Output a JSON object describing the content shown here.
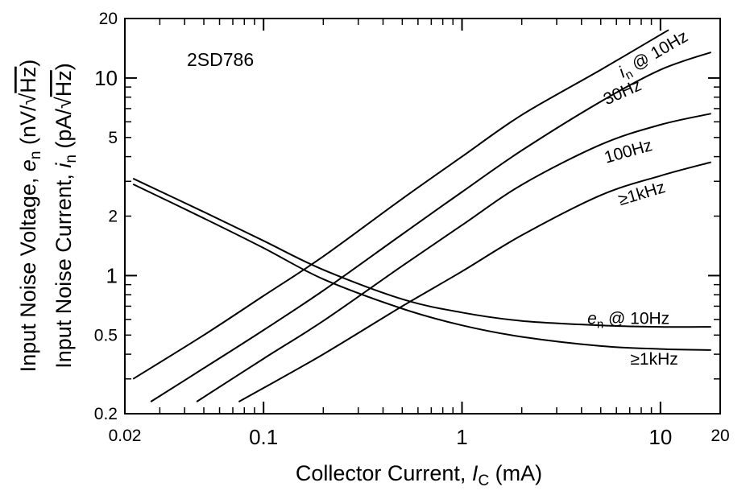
{
  "chart_data": {
    "type": "line",
    "annotation": "2SD786",
    "xlabel": {
      "prefix": "Collector Current, ",
      "symbol": "I",
      "sub": "C",
      "suffix": " (mA)"
    },
    "ylabel": {
      "line1": {
        "prefix": "Input Noise Voltage, ",
        "symbol": "e",
        "sub": "n",
        "unit_open": " (nV/",
        "radical": "√",
        "radicand": "Hz",
        "unit_close": ")"
      },
      "line2": {
        "prefix": "Input Noise Current, ",
        "symbol": "i",
        "sub": "n",
        "unit_open": " (pA/",
        "radical": "√",
        "radicand": "Hz",
        "unit_close": ")"
      }
    },
    "x_scale": "log",
    "y_scale": "log",
    "xlim": [
      0.02,
      20
    ],
    "ylim": [
      0.2,
      20
    ],
    "x_ticks": [
      {
        "value": 0.02,
        "label": "0.02",
        "major": false
      },
      {
        "value": 0.1,
        "label": "0.1",
        "major": true
      },
      {
        "value": 1,
        "label": "1",
        "major": true
      },
      {
        "value": 10,
        "label": "10",
        "major": true
      },
      {
        "value": 20,
        "label": "20",
        "major": false
      }
    ],
    "y_ticks": [
      {
        "value": 0.2,
        "label": "0.2",
        "major": false
      },
      {
        "value": 0.5,
        "label": "0.5",
        "major": false
      },
      {
        "value": 1,
        "label": "1",
        "major": true
      },
      {
        "value": 2,
        "label": "2",
        "major": false
      },
      {
        "value": 5,
        "label": "5",
        "major": false
      },
      {
        "value": 10,
        "label": "10",
        "major": true
      },
      {
        "value": 20,
        "label": "20",
        "major": false
      }
    ],
    "grid": false,
    "legend": "none",
    "series": [
      {
        "name": "i_n @ 10Hz",
        "label": {
          "symbol": "i",
          "sub": "n",
          "text": " @ 10Hz",
          "at": [
            9.5,
            12.5
          ]
        },
        "x": [
          0.022,
          0.05,
          0.1,
          0.2,
          0.5,
          1,
          2,
          5,
          11
        ],
        "y": [
          0.3,
          0.5,
          0.79,
          1.25,
          2.45,
          4.0,
          6.5,
          11.0,
          17.5
        ]
      },
      {
        "name": "30Hz",
        "label": {
          "text": "30Hz",
          "at": [
            6.6,
            8.0
          ]
        },
        "x": [
          0.027,
          0.05,
          0.1,
          0.2,
          0.5,
          1,
          2,
          5,
          10,
          18
        ],
        "y": [
          0.23,
          0.34,
          0.53,
          0.84,
          1.62,
          2.65,
          4.3,
          7.6,
          11.0,
          13.5
        ]
      },
      {
        "name": "100Hz",
        "label": {
          "text": "100Hz",
          "at": [
            7.0,
            4.0
          ]
        },
        "x": [
          0.046,
          0.1,
          0.2,
          0.5,
          1,
          2,
          5,
          10,
          18
        ],
        "y": [
          0.23,
          0.38,
          0.59,
          1.12,
          1.8,
          2.88,
          4.6,
          5.8,
          6.6
        ]
      },
      {
        "name": "≥1kHz",
        "label": {
          "text": "≥1kHz",
          "at": [
            8.2,
            2.45
          ]
        },
        "x": [
          0.075,
          0.1,
          0.2,
          0.5,
          1,
          2,
          5,
          10,
          18
        ],
        "y": [
          0.23,
          0.27,
          0.4,
          0.7,
          1.05,
          1.6,
          2.55,
          3.2,
          3.75
        ]
      },
      {
        "name": "e_n @ 10Hz",
        "label": {
          "symbol": "e",
          "sub": "n",
          "text": " @ 10Hz",
          "at": [
            6.9,
            0.57
          ]
        },
        "x": [
          0.022,
          0.05,
          0.1,
          0.2,
          0.5,
          1,
          2,
          5,
          10,
          18
        ],
        "y": [
          3.1,
          2.1,
          1.5,
          1.07,
          0.76,
          0.65,
          0.59,
          0.56,
          0.55,
          0.55
        ]
      },
      {
        "name": "≥1kHz",
        "label": {
          "text": "≥1kHz",
          "at": [
            9.3,
            0.355
          ]
        },
        "x": [
          0.022,
          0.05,
          0.1,
          0.2,
          0.5,
          1,
          2,
          5,
          10,
          18
        ],
        "y": [
          2.9,
          1.95,
          1.38,
          0.96,
          0.68,
          0.56,
          0.49,
          0.44,
          0.425,
          0.42
        ]
      }
    ]
  }
}
